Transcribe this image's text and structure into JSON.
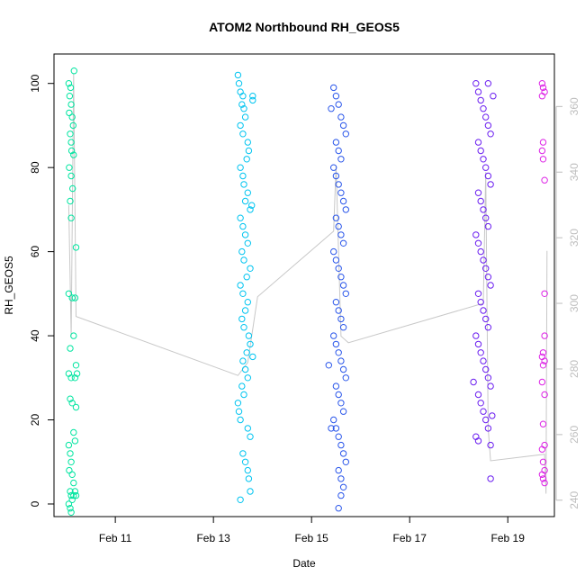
{
  "chart_data": {
    "type": "scatter",
    "title": "ATOM2 Northbound RH_GEOS5",
    "xlabel": "Date",
    "ylabel": "RH_GEOS5",
    "xlim": [
      9.75,
      19.95
    ],
    "ylim": [
      -3,
      107
    ],
    "y2lim": [
      235,
      376
    ],
    "x_ticks": [
      {
        "value": 11,
        "label": "Feb 11"
      },
      {
        "value": 13,
        "label": "Feb 13"
      },
      {
        "value": 15,
        "label": "Feb 15"
      },
      {
        "value": 17,
        "label": "Feb 17"
      },
      {
        "value": 19,
        "label": "Feb 19"
      }
    ],
    "y_ticks": [
      0,
      20,
      40,
      60,
      80,
      100
    ],
    "y2_ticks": [
      240,
      260,
      280,
      300,
      320,
      340,
      360
    ],
    "grid": false,
    "series": [
      {
        "color": "#00e5a0",
        "points": [
          [
            10.05,
            100
          ],
          [
            10.07,
            97
          ],
          [
            10.1,
            95
          ],
          [
            10.12,
            92
          ],
          [
            10.08,
            88
          ],
          [
            10.1,
            86
          ],
          [
            10.15,
            83
          ],
          [
            10.06,
            80
          ],
          [
            10.1,
            78
          ],
          [
            10.13,
            75
          ],
          [
            10.08,
            72
          ],
          [
            10.1,
            68
          ],
          [
            10.2,
            61
          ],
          [
            10.05,
            50
          ],
          [
            10.12,
            49
          ],
          [
            10.18,
            49
          ],
          [
            10.15,
            40
          ],
          [
            10.08,
            37
          ],
          [
            10.05,
            31
          ],
          [
            10.1,
            30
          ],
          [
            10.2,
            33
          ],
          [
            10.22,
            31
          ],
          [
            10.18,
            30
          ],
          [
            10.08,
            25
          ],
          [
            10.12,
            24
          ],
          [
            10.2,
            23
          ],
          [
            10.15,
            17
          ],
          [
            10.18,
            15
          ],
          [
            10.05,
            14
          ],
          [
            10.08,
            12
          ],
          [
            10.1,
            10
          ],
          [
            10.06,
            8
          ],
          [
            10.12,
            7
          ],
          [
            10.15,
            5
          ],
          [
            10.08,
            3
          ],
          [
            10.1,
            2
          ],
          [
            10.12,
            1
          ],
          [
            10.05,
            0
          ],
          [
            10.08,
            -1
          ],
          [
            10.15,
            2
          ],
          [
            10.18,
            3
          ],
          [
            10.2,
            2
          ],
          [
            10.1,
            -2
          ],
          [
            10.16,
            103
          ],
          [
            10.09,
            99
          ],
          [
            10.14,
            90
          ],
          [
            10.06,
            93
          ],
          [
            10.11,
            84
          ]
        ]
      },
      {
        "color": "#00c4f0",
        "points": [
          [
            13.5,
            102
          ],
          [
            13.52,
            100
          ],
          [
            13.55,
            98
          ],
          [
            13.6,
            97
          ],
          [
            13.58,
            95
          ],
          [
            13.62,
            94
          ],
          [
            13.65,
            92
          ],
          [
            13.55,
            90
          ],
          [
            13.6,
            88
          ],
          [
            13.7,
            86
          ],
          [
            13.72,
            84
          ],
          [
            13.68,
            82
          ],
          [
            13.55,
            80
          ],
          [
            13.6,
            78
          ],
          [
            13.62,
            76
          ],
          [
            13.7,
            74
          ],
          [
            13.65,
            72
          ],
          [
            13.75,
            70
          ],
          [
            13.55,
            68
          ],
          [
            13.6,
            66
          ],
          [
            13.65,
            64
          ],
          [
            13.7,
            62
          ],
          [
            13.58,
            60
          ],
          [
            13.62,
            58
          ],
          [
            13.75,
            56
          ],
          [
            13.68,
            54
          ],
          [
            13.55,
            52
          ],
          [
            13.6,
            50
          ],
          [
            13.7,
            48
          ],
          [
            13.65,
            46
          ],
          [
            13.58,
            44
          ],
          [
            13.62,
            42
          ],
          [
            13.72,
            40
          ],
          [
            13.75,
            38
          ],
          [
            13.68,
            36
          ],
          [
            13.6,
            34
          ],
          [
            13.65,
            32
          ],
          [
            13.7,
            30
          ],
          [
            13.58,
            28
          ],
          [
            13.62,
            26
          ],
          [
            13.5,
            24
          ],
          [
            13.52,
            22
          ],
          [
            13.55,
            20
          ],
          [
            13.7,
            18
          ],
          [
            13.75,
            16
          ],
          [
            13.6,
            12
          ],
          [
            13.65,
            10
          ],
          [
            13.7,
            8
          ],
          [
            13.72,
            6
          ],
          [
            13.75,
            3
          ],
          [
            13.55,
            1
          ],
          [
            13.8,
            97
          ],
          [
            13.8,
            96
          ],
          [
            13.78,
            71
          ],
          [
            13.8,
            35
          ]
        ]
      },
      {
        "color": "#2a56ea",
        "points": [
          [
            15.45,
            99
          ],
          [
            15.5,
            97
          ],
          [
            15.55,
            95
          ],
          [
            15.6,
            92
          ],
          [
            15.65,
            90
          ],
          [
            15.7,
            88
          ],
          [
            15.5,
            86
          ],
          [
            15.55,
            84
          ],
          [
            15.6,
            82
          ],
          [
            15.45,
            80
          ],
          [
            15.5,
            78
          ],
          [
            15.55,
            76
          ],
          [
            15.6,
            74
          ],
          [
            15.65,
            72
          ],
          [
            15.7,
            70
          ],
          [
            15.5,
            68
          ],
          [
            15.55,
            66
          ],
          [
            15.6,
            64
          ],
          [
            15.65,
            62
          ],
          [
            15.45,
            60
          ],
          [
            15.5,
            58
          ],
          [
            15.55,
            56
          ],
          [
            15.6,
            54
          ],
          [
            15.65,
            52
          ],
          [
            15.7,
            50
          ],
          [
            15.5,
            48
          ],
          [
            15.55,
            46
          ],
          [
            15.6,
            44
          ],
          [
            15.65,
            42
          ],
          [
            15.45,
            40
          ],
          [
            15.5,
            38
          ],
          [
            15.55,
            36
          ],
          [
            15.6,
            34
          ],
          [
            15.65,
            32
          ],
          [
            15.7,
            30
          ],
          [
            15.5,
            28
          ],
          [
            15.55,
            26
          ],
          [
            15.6,
            24
          ],
          [
            15.65,
            22
          ],
          [
            15.45,
            20
          ],
          [
            15.5,
            18
          ],
          [
            15.55,
            16
          ],
          [
            15.6,
            14
          ],
          [
            15.65,
            12
          ],
          [
            15.7,
            10
          ],
          [
            15.55,
            8
          ],
          [
            15.6,
            6
          ],
          [
            15.65,
            4
          ],
          [
            15.6,
            2
          ],
          [
            15.55,
            -1
          ],
          [
            15.4,
            94
          ],
          [
            15.35,
            33
          ],
          [
            15.4,
            18
          ]
        ]
      },
      {
        "color": "#6a1df0",
        "points": [
          [
            18.35,
            100
          ],
          [
            18.4,
            98
          ],
          [
            18.45,
            96
          ],
          [
            18.5,
            94
          ],
          [
            18.55,
            92
          ],
          [
            18.6,
            90
          ],
          [
            18.65,
            88
          ],
          [
            18.4,
            86
          ],
          [
            18.45,
            84
          ],
          [
            18.5,
            82
          ],
          [
            18.55,
            80
          ],
          [
            18.6,
            78
          ],
          [
            18.65,
            76
          ],
          [
            18.4,
            74
          ],
          [
            18.45,
            72
          ],
          [
            18.5,
            70
          ],
          [
            18.55,
            68
          ],
          [
            18.6,
            66
          ],
          [
            18.35,
            64
          ],
          [
            18.4,
            62
          ],
          [
            18.45,
            60
          ],
          [
            18.5,
            58
          ],
          [
            18.55,
            56
          ],
          [
            18.6,
            54
          ],
          [
            18.65,
            52
          ],
          [
            18.4,
            50
          ],
          [
            18.45,
            48
          ],
          [
            18.5,
            46
          ],
          [
            18.55,
            44
          ],
          [
            18.6,
            42
          ],
          [
            18.35,
            40
          ],
          [
            18.4,
            38
          ],
          [
            18.45,
            36
          ],
          [
            18.5,
            34
          ],
          [
            18.55,
            32
          ],
          [
            18.6,
            30
          ],
          [
            18.65,
            28
          ],
          [
            18.4,
            26
          ],
          [
            18.45,
            24
          ],
          [
            18.5,
            22
          ],
          [
            18.55,
            20
          ],
          [
            18.6,
            18
          ],
          [
            18.35,
            16
          ],
          [
            18.4,
            15
          ],
          [
            18.65,
            14
          ],
          [
            18.65,
            6
          ],
          [
            18.6,
            100
          ],
          [
            18.7,
            97
          ],
          [
            18.3,
            29
          ],
          [
            18.68,
            21
          ]
        ]
      },
      {
        "color": "#dd22e6",
        "points": [
          [
            19.7,
            100
          ],
          [
            19.72,
            99
          ],
          [
            19.75,
            98
          ],
          [
            19.7,
            97
          ],
          [
            19.72,
            86
          ],
          [
            19.7,
            84
          ],
          [
            19.72,
            82
          ],
          [
            19.75,
            77
          ],
          [
            19.75,
            50
          ],
          [
            19.75,
            40
          ],
          [
            19.72,
            36
          ],
          [
            19.7,
            35
          ],
          [
            19.75,
            34
          ],
          [
            19.72,
            33
          ],
          [
            19.7,
            29
          ],
          [
            19.75,
            26
          ],
          [
            19.72,
            19
          ],
          [
            19.75,
            14
          ],
          [
            19.7,
            13
          ],
          [
            19.72,
            10
          ],
          [
            19.75,
            8
          ],
          [
            19.7,
            7
          ],
          [
            19.72,
            6
          ],
          [
            19.75,
            5
          ]
        ]
      }
    ],
    "line_series": {
      "color": "#c8c8c8",
      "axis": "right",
      "points": [
        [
          10.05,
          330
        ],
        [
          10.1,
          290
        ],
        [
          10.15,
          370
        ],
        [
          10.2,
          296
        ],
        [
          13.5,
          278
        ],
        [
          13.7,
          282
        ],
        [
          13.9,
          302
        ],
        [
          15.45,
          322
        ],
        [
          15.5,
          342
        ],
        [
          15.6,
          290
        ],
        [
          15.75,
          288
        ],
        [
          18.5,
          300
        ],
        [
          18.55,
          340
        ],
        [
          18.6,
          262
        ],
        [
          18.65,
          252
        ],
        [
          19.75,
          254
        ],
        [
          19.78,
          242
        ],
        [
          19.8,
          316
        ]
      ]
    }
  }
}
